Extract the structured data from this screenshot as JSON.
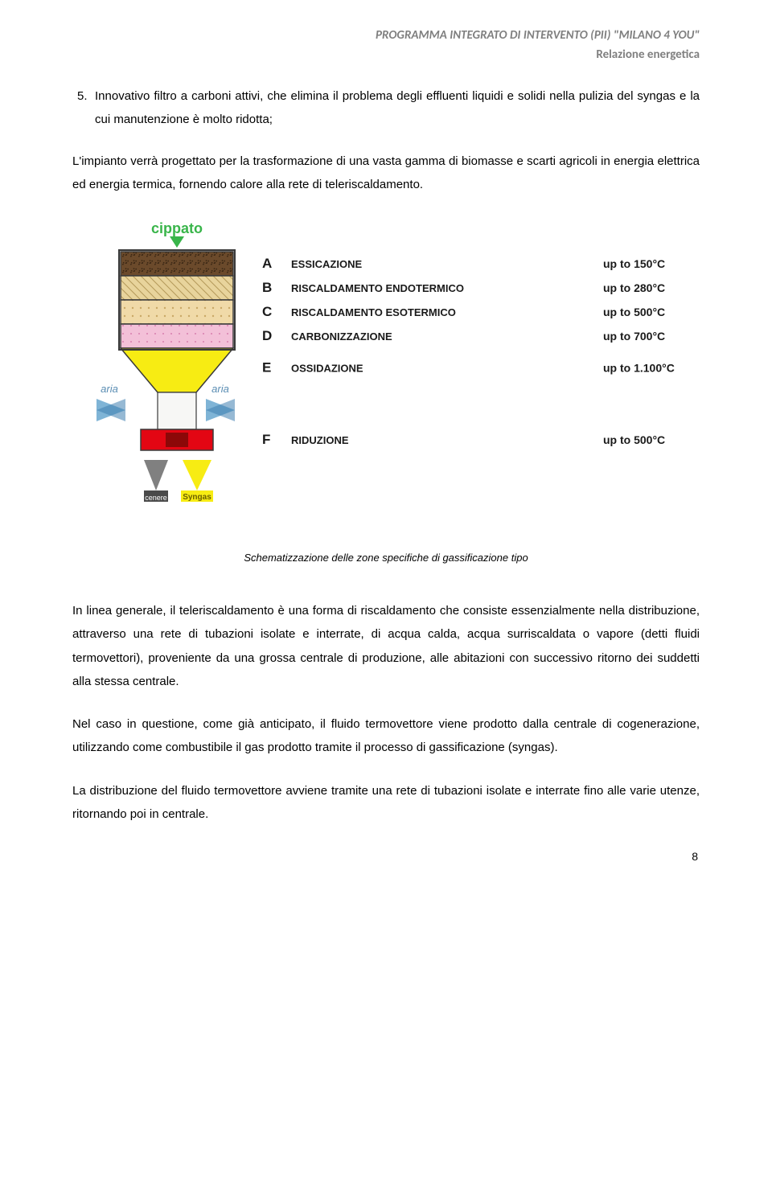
{
  "header": {
    "title": "PROGRAMMA INTEGRATO DI INTERVENTO (PII) \"MILANO 4 YOU\"",
    "subtitle": "Relazione energetica"
  },
  "list_item": {
    "num": "5.",
    "text": "Innovativo filtro a carboni attivi, che elimina il problema degli effluenti liquidi e solidi nella pulizia del syngas e la cui manutenzione è molto ridotta;"
  },
  "para1": "L'impianto verrà progettato per la trasformazione di una vasta gamma di biomasse e scarti agricoli in energia elettrica ed energia termica, fornendo calore alla rete di teleriscaldamento.",
  "diagram": {
    "input_label": "cippato",
    "input_color": "#39b54a",
    "air_label": "aria",
    "air_color": "#7fb4d6",
    "ash_label": "cenere",
    "ash_color": "#808080",
    "syngas_label": "Syngas",
    "syngas_color": "#f7ec13",
    "zones": [
      {
        "letter": "A",
        "name": "ESSICAZIONE",
        "temp": "up to 150°C",
        "fill": "#6b4a2b",
        "pattern": "soil"
      },
      {
        "letter": "B",
        "name": "RISCALDAMENTO ENDOTERMICO",
        "temp": "up to 280°C",
        "fill": "#e8d49c",
        "pattern": "hatch"
      },
      {
        "letter": "C",
        "name": "RISCALDAMENTO ESOTERMICO",
        "temp": "up to 500°C",
        "fill": "#f0daa8",
        "pattern": "dots"
      },
      {
        "letter": "D",
        "name": "CARBONIZZAZIONE",
        "temp": "up to 700°C",
        "fill": "#f3c0d8",
        "pattern": "pink"
      },
      {
        "letter": "E",
        "name": "OSSIDAZIONE",
        "temp": "up to 1.100°C",
        "fill": "#f7ec13",
        "pattern": "flat"
      },
      {
        "letter": "F",
        "name": "RIDUZIONE",
        "temp": "up to 500°C",
        "fill": "#e30613",
        "pattern": "flat"
      }
    ],
    "label_fontsize": 13,
    "letter_fontsize": 17,
    "temp_fontsize": 14,
    "reactor_outline": "#3a3a3a",
    "text_color": "#1a1a1a"
  },
  "caption": "Schematizzazione delle zone specifiche di gassificazione tipo",
  "para2": "In linea generale, il teleriscaldamento è una forma di riscaldamento che consiste essenzialmente nella distribuzione, attraverso una rete di tubazioni isolate e interrate, di acqua calda, acqua surriscaldata o vapore (detti fluidi termovettori), proveniente da una grossa centrale di produzione, alle abitazioni con successivo ritorno dei suddetti alla stessa centrale.",
  "para3": "Nel caso in questione, come già anticipato, il fluido termovettore viene prodotto dalla centrale di cogenerazione, utilizzando come combustibile il gas prodotto tramite il processo di gassificazione (syngas).",
  "para4": "La distribuzione del fluido termovettore avviene tramite una rete di tubazioni isolate e interrate fino alle varie utenze, ritornando poi in centrale.",
  "page_number": "8"
}
